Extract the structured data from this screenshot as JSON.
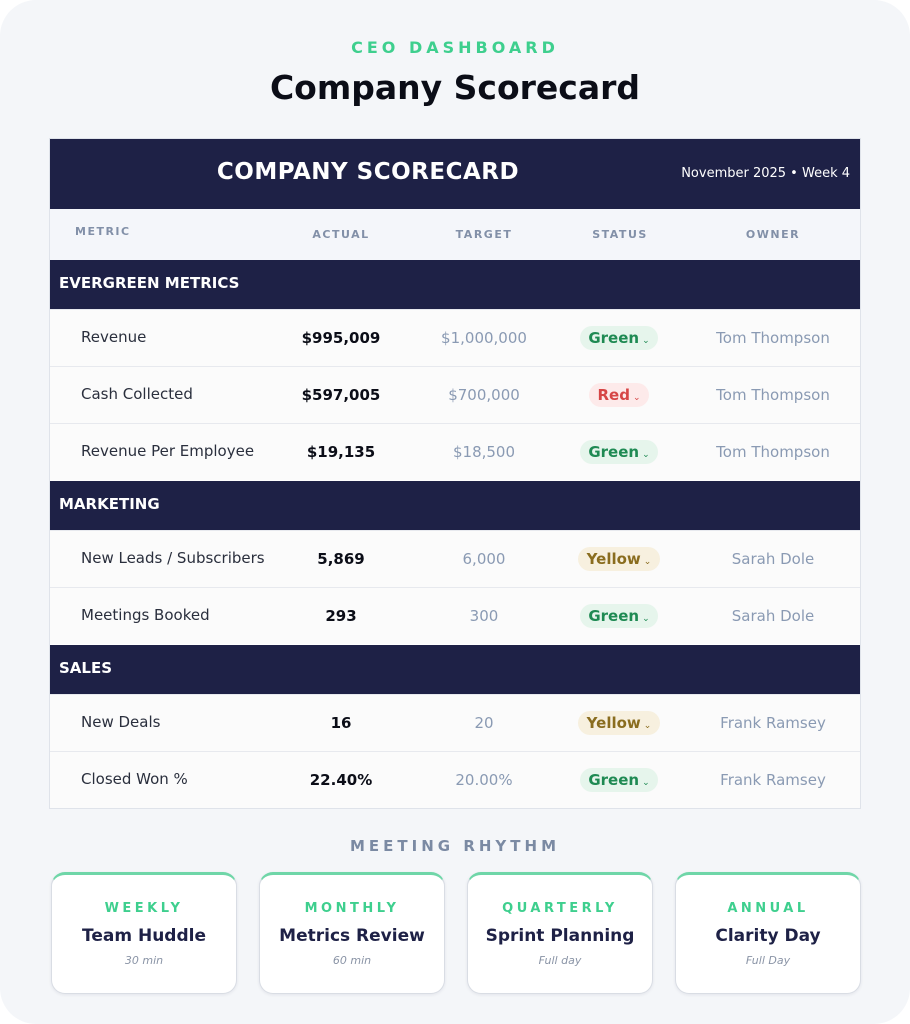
{
  "header": {
    "eyebrow": "CEO DASHBOARD",
    "title": "Company Scorecard"
  },
  "scorecard": {
    "title": "COMPANY SCORECARD",
    "period": "November 2025 • Week 4",
    "columns": {
      "metric": "METRIC",
      "actual": "ACTUAL",
      "target": "TARGET",
      "status": "STATUS",
      "owner": "OWNER"
    },
    "sections": [
      {
        "name": "EVERGREEN METRICS",
        "rows": [
          {
            "metric": "Revenue",
            "actual": "$995,009",
            "target": "$1,000,000",
            "status": "Green",
            "owner": "Tom Thompson"
          },
          {
            "metric": "Cash Collected",
            "actual": "$597,005",
            "target": "$700,000",
            "status": "Red",
            "owner": "Tom Thompson"
          },
          {
            "metric": "Revenue Per Employee",
            "actual": "$19,135",
            "target": "$18,500",
            "status": "Green",
            "owner": "Tom Thompson"
          }
        ]
      },
      {
        "name": "MARKETING",
        "rows": [
          {
            "metric": "New Leads / Subscribers",
            "actual": "5,869",
            "target": "6,000",
            "status": "Yellow",
            "owner": "Sarah Dole"
          },
          {
            "metric": "Meetings Booked",
            "actual": "293",
            "target": "300",
            "status": "Green",
            "owner": "Sarah Dole"
          }
        ]
      },
      {
        "name": "SALES",
        "rows": [
          {
            "metric": "New Deals",
            "actual": "16",
            "target": "20",
            "status": "Yellow",
            "owner": "Frank Ramsey"
          },
          {
            "metric": "Closed Won %",
            "actual": "22.40%",
            "target": "20.00%",
            "status": "Green",
            "owner": "Frank Ramsey"
          }
        ]
      }
    ],
    "status_icon": "chevron-down-icon"
  },
  "rhythm": {
    "title": "MEETING RHYTHM",
    "cards": [
      {
        "frequency": "WEEKLY",
        "name": "Team Huddle",
        "duration": "30 min"
      },
      {
        "frequency": "MONTHLY",
        "name": "Metrics Review",
        "duration": "60 min"
      },
      {
        "frequency": "QUARTERLY",
        "name": "Sprint Planning",
        "duration": "Full day"
      },
      {
        "frequency": "ANNUAL",
        "name": "Clarity Day",
        "duration": "Full Day"
      }
    ]
  },
  "colors": {
    "navy": "#1e2146",
    "accent_green": "#3ecf8e",
    "status_green": "#1f8a53",
    "status_red": "#d64545",
    "status_yellow": "#8a6d1f"
  }
}
